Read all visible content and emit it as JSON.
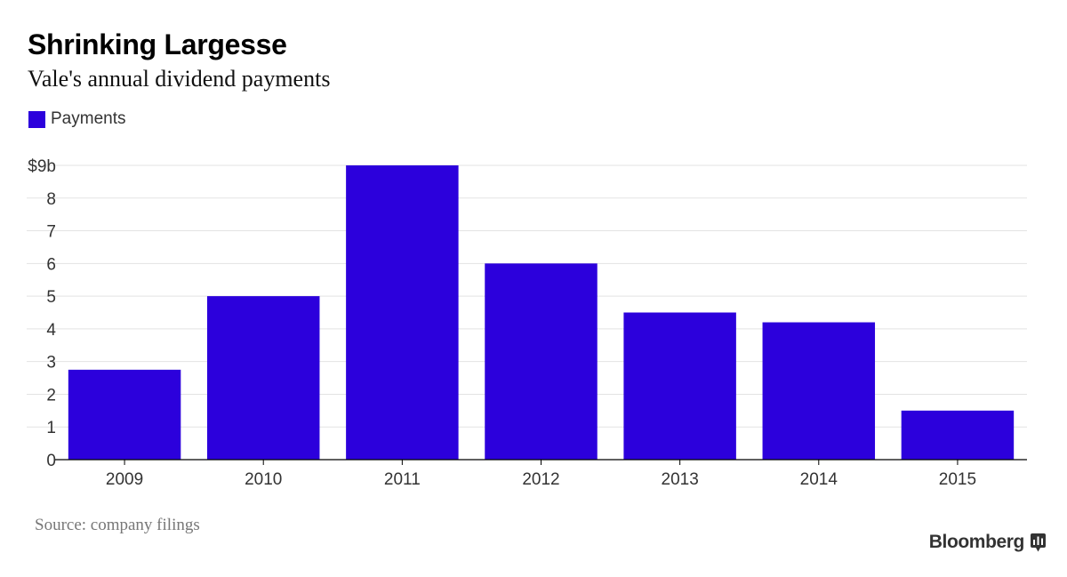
{
  "header": {
    "title": "Shrinking Largesse",
    "subtitle": "Vale's annual dividend payments"
  },
  "legend": {
    "label": "Payments",
    "color": "#2c00dc"
  },
  "footer": {
    "source": "Source: company filings",
    "brand": "Bloomberg"
  },
  "chart_data": {
    "type": "bar",
    "categories": [
      "2009",
      "2010",
      "2011",
      "2012",
      "2013",
      "2014",
      "2015"
    ],
    "series": [
      {
        "name": "Payments",
        "values": [
          2.75,
          5.0,
          9.0,
          6.0,
          4.5,
          4.2,
          1.5
        ]
      }
    ],
    "title": "Shrinking Largesse",
    "subtitle": "Vale's annual dividend payments",
    "xlabel": "",
    "ylabel": "",
    "ylim": [
      0,
      9
    ],
    "yticks": [
      0,
      1,
      2,
      3,
      4,
      5,
      6,
      7,
      8,
      9
    ],
    "ytick_labels": [
      "0",
      "1",
      "2",
      "3",
      "4",
      "5",
      "6",
      "7",
      "8",
      "$9b"
    ],
    "grid": true,
    "legend_position": "top-left",
    "bar_color": "#2c00dc"
  }
}
